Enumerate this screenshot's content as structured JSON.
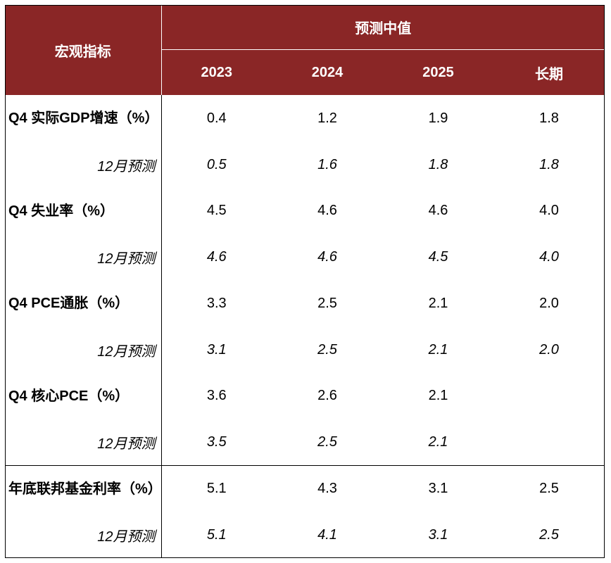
{
  "header": {
    "indicator_label": "宏观指标",
    "group_label": "预测中值",
    "years": [
      "2023",
      "2024",
      "2025",
      "长期"
    ]
  },
  "rows": [
    {
      "label": "Q4 实际GDP增速（%）",
      "values": [
        "0.4",
        "1.2",
        "1.9",
        "1.8"
      ],
      "forecast_label": "12月预测",
      "forecast_values": [
        "0.5",
        "1.6",
        "1.8",
        "1.8"
      ]
    },
    {
      "label": "Q4 失业率（%）",
      "values": [
        "4.5",
        "4.6",
        "4.6",
        "4.0"
      ],
      "forecast_label": "12月预测",
      "forecast_values": [
        "4.6",
        "4.6",
        "4.5",
        "4.0"
      ]
    },
    {
      "label": "Q4 PCE通胀（%）",
      "values": [
        "3.3",
        "2.5",
        "2.1",
        "2.0"
      ],
      "forecast_label": "12月预测",
      "forecast_values": [
        "3.1",
        "2.5",
        "2.1",
        "2.0"
      ]
    },
    {
      "label": "Q4 核心PCE（%）",
      "values": [
        "3.6",
        "2.6",
        "2.1",
        ""
      ],
      "forecast_label": "12月预测",
      "forecast_values": [
        "3.5",
        "2.5",
        "2.1",
        ""
      ]
    },
    {
      "label": "年底联邦基金利率（%）",
      "values": [
        "5.1",
        "4.3",
        "3.1",
        "2.5"
      ],
      "forecast_label": "12月预测",
      "forecast_values": [
        "5.1",
        "4.1",
        "3.1",
        "2.5"
      ]
    }
  ],
  "colors": {
    "header_bg": "#8a2626",
    "header_text": "#ffffff"
  }
}
